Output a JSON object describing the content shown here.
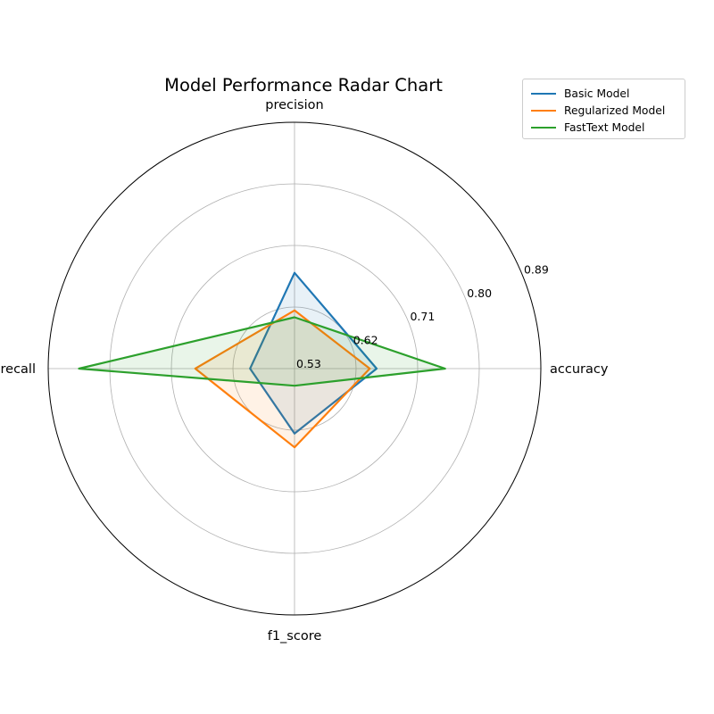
{
  "chart_data": {
    "type": "radar",
    "title": "Model Performance Radar Chart",
    "axes": [
      "accuracy",
      "precision",
      "recall",
      "f1_score"
    ],
    "rlim": [
      0.53,
      0.89
    ],
    "rticks": [
      0.53,
      0.62,
      0.71,
      0.8,
      0.89
    ],
    "rtick_labels": [
      "0.53",
      "0.62",
      "0.71",
      "0.80",
      "0.89"
    ],
    "grid": true,
    "legend_position": "top-right",
    "series": [
      {
        "name": "Basic Model",
        "color": "#1f77b4",
        "values": [
          0.65,
          0.67,
          0.595,
          0.625
        ]
      },
      {
        "name": "Regularized Model",
        "color": "#ff7f0e",
        "values": [
          0.64,
          0.615,
          0.675,
          0.645
        ]
      },
      {
        "name": "FastText Model",
        "color": "#2ca02c",
        "values": [
          0.75,
          0.605,
          0.845,
          0.555
        ]
      }
    ]
  }
}
